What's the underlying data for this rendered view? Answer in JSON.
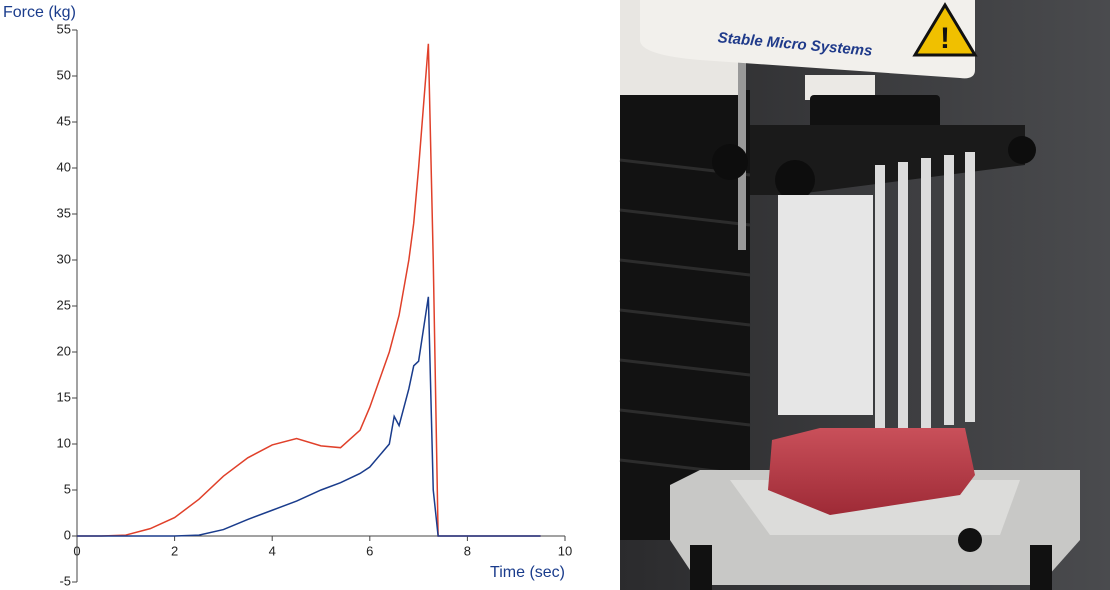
{
  "chart_data": {
    "type": "line",
    "y_label": "Force (kg)",
    "x_label": "Time (sec)",
    "x": [
      0,
      0.5,
      1,
      1.5,
      2,
      2.5,
      3,
      3.5,
      4,
      4.5,
      5,
      5.4,
      5.8,
      6,
      6.4,
      6.5,
      6.6,
      6.8,
      6.9,
      7,
      7.2,
      7.3,
      7.4,
      7.5,
      8,
      9,
      9.5
    ],
    "series": [
      {
        "color": "#e0402a",
        "values": [
          0,
          0,
          0.1,
          0.8,
          2,
          4,
          6.5,
          8.5,
          9.9,
          10.6,
          9.8,
          9.6,
          11.5,
          14,
          20,
          22,
          24,
          30,
          34,
          40,
          53.5,
          30,
          0,
          0,
          0,
          0,
          0
        ]
      },
      {
        "color": "#1a3c8c",
        "values": [
          0,
          0,
          0,
          0,
          0,
          0.1,
          0.7,
          1.8,
          2.8,
          3.8,
          5,
          5.8,
          6.8,
          7.5,
          10,
          13,
          12,
          16,
          18.5,
          19,
          26,
          5,
          0,
          0,
          0,
          0,
          0
        ]
      }
    ],
    "xlim": [
      0,
      10
    ],
    "xticks": [
      0,
      2,
      4,
      6,
      8,
      10
    ],
    "ylim": [
      -5,
      55
    ],
    "yticks": [
      -5,
      0,
      5,
      10,
      15,
      20,
      25,
      30,
      35,
      40,
      45,
      50,
      55
    ]
  },
  "photo": {
    "label": "Stable Micro Systems"
  }
}
